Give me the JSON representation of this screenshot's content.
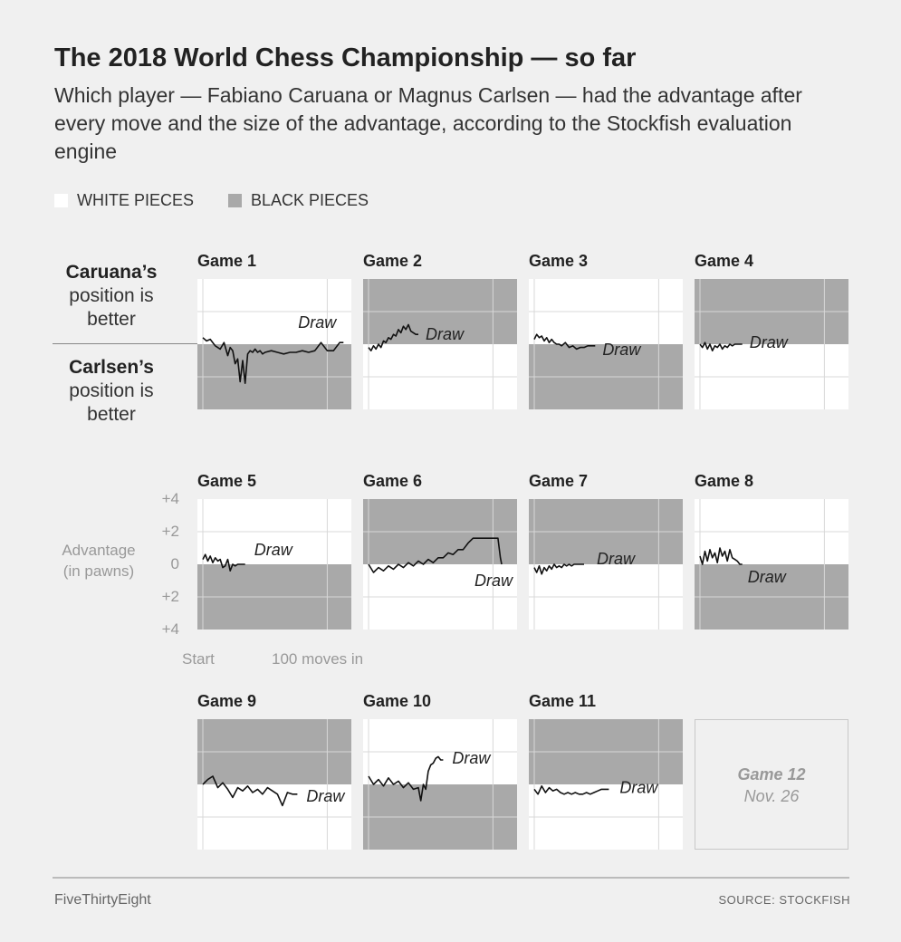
{
  "header": {
    "title": "The 2018 World Chess Championship — so far",
    "subtitle": "Which player — Fabiano Caruana or Magnus Carlsen — had the advantage after every move and the size of the advantage, according to the Stockfish evaluation engine"
  },
  "legend": {
    "white": "WHITE PIECES",
    "black": "BLACK PIECES"
  },
  "side_labels": {
    "caruana": {
      "name": "Caruana’s",
      "l2": "position is",
      "l3": "better"
    },
    "carlsen": {
      "name": "Carlsen’s",
      "l2": "position is",
      "l3": "better"
    }
  },
  "axis": {
    "ylabel_1": "Advantage",
    "ylabel_2": "(in pawns)",
    "yticks": [
      "+4",
      "+2",
      "0",
      "+2",
      "+4"
    ],
    "xticks": [
      "Start",
      "100 moves in"
    ]
  },
  "pending_game": {
    "title": "Game 12",
    "date": "Nov. 26"
  },
  "footer": {
    "brand": "FiveThirtyEight",
    "source": "SOURCE: STOCKFISH"
  },
  "colors": {
    "white_pieces": "#ffffff",
    "black_pieces": "#a9a9a9",
    "grid": "#d8d8d8",
    "line": "#111111"
  },
  "chart_data": {
    "type": "line",
    "x_unit": "moves",
    "y_unit": "pawns",
    "y_positive_means": "Caruana’s position is better",
    "ylim": [
      -4,
      4
    ],
    "xlim": [
      0,
      115
    ],
    "games": [
      {
        "title": "Game 1",
        "caruana_color": "white",
        "result": "Draw",
        "x": [
          0,
          3,
          6,
          10,
          14,
          17,
          20,
          22,
          24,
          26,
          28,
          30,
          32,
          34,
          36,
          38,
          40,
          42,
          44,
          46,
          48,
          50,
          55,
          60,
          65,
          70,
          75,
          80,
          85,
          90,
          95,
          100,
          105,
          110,
          113
        ],
        "y": [
          0.4,
          0.2,
          0.3,
          -0.1,
          -0.3,
          0.1,
          -0.7,
          -0.2,
          -0.4,
          -1.2,
          -0.9,
          -2.3,
          -1.0,
          -2.4,
          -0.6,
          -0.4,
          -0.5,
          -0.3,
          -0.5,
          -0.4,
          -0.6,
          -0.5,
          -0.4,
          -0.5,
          -0.6,
          -0.5,
          -0.5,
          -0.4,
          -0.5,
          -0.4,
          0.1,
          -0.4,
          -0.4,
          0.1,
          0.1
        ]
      },
      {
        "title": "Game 2",
        "caruana_color": "black",
        "result": "Draw",
        "x": [
          0,
          2,
          4,
          6,
          8,
          10,
          12,
          14,
          16,
          18,
          20,
          22,
          24,
          26,
          28,
          30,
          32,
          34,
          36,
          38,
          40
        ],
        "y": [
          -0.2,
          -0.4,
          -0.1,
          -0.3,
          0.0,
          -0.2,
          0.2,
          0.1,
          0.4,
          0.3,
          0.6,
          0.5,
          0.9,
          0.7,
          1.1,
          0.9,
          1.2,
          0.8,
          0.7,
          0.6,
          0.6
        ]
      },
      {
        "title": "Game 3",
        "caruana_color": "white",
        "result": "Draw",
        "x": [
          0,
          2,
          4,
          6,
          8,
          10,
          12,
          14,
          16,
          18,
          20,
          22,
          25,
          28,
          31,
          34,
          37,
          40,
          43,
          46,
          49
        ],
        "y": [
          0.3,
          0.6,
          0.4,
          0.5,
          0.2,
          0.4,
          0.1,
          0.3,
          0.1,
          0.0,
          0.0,
          -0.1,
          0.1,
          -0.2,
          -0.1,
          -0.3,
          -0.2,
          -0.2,
          -0.1,
          -0.1,
          -0.1
        ]
      },
      {
        "title": "Game 4",
        "caruana_color": "black",
        "result": "Draw",
        "x": [
          0,
          2,
          4,
          6,
          8,
          10,
          12,
          14,
          16,
          18,
          20,
          22,
          24,
          26,
          28,
          30,
          32,
          34
        ],
        "y": [
          0.0,
          -0.2,
          0.1,
          -0.3,
          0.0,
          -0.4,
          -0.1,
          -0.2,
          0.0,
          -0.3,
          -0.1,
          -0.2,
          0.0,
          -0.1,
          0.0,
          0.0,
          0.0,
          0.0
        ]
      },
      {
        "title": "Game 5",
        "caruana_color": "white",
        "result": "Draw",
        "x": [
          0,
          2,
          4,
          6,
          8,
          10,
          12,
          14,
          16,
          18,
          20,
          22,
          24,
          26,
          28,
          30,
          32,
          34
        ],
        "y": [
          0.3,
          0.6,
          0.2,
          0.5,
          0.1,
          0.4,
          0.2,
          0.3,
          -0.2,
          -0.1,
          0.3,
          -0.4,
          0.0,
          -0.1,
          0.0,
          0.0,
          0.0,
          0.0
        ]
      },
      {
        "title": "Game 6",
        "caruana_color": "black",
        "result": "Draw",
        "x": [
          0,
          4,
          8,
          12,
          16,
          20,
          24,
          28,
          32,
          36,
          40,
          44,
          48,
          52,
          56,
          60,
          64,
          68,
          72,
          76,
          80,
          84,
          88,
          92,
          96,
          100,
          104,
          106,
          107
        ],
        "y": [
          0.0,
          -0.5,
          -0.2,
          -0.4,
          -0.1,
          -0.3,
          0.0,
          -0.2,
          0.1,
          -0.1,
          0.2,
          0.0,
          0.3,
          0.1,
          0.4,
          0.4,
          0.7,
          0.6,
          0.9,
          0.9,
          1.3,
          1.6,
          1.6,
          1.6,
          1.6,
          1.6,
          1.6,
          0.4,
          0.0
        ]
      },
      {
        "title": "Game 7",
        "caruana_color": "black",
        "result": "Draw",
        "x": [
          0,
          2,
          4,
          6,
          8,
          10,
          12,
          14,
          16,
          18,
          20,
          22,
          24,
          26,
          28,
          30,
          32,
          34,
          36,
          38,
          40
        ],
        "y": [
          -0.2,
          -0.5,
          -0.1,
          -0.6,
          -0.2,
          -0.4,
          -0.1,
          -0.3,
          0.0,
          -0.2,
          -0.1,
          -0.2,
          0.0,
          -0.1,
          0.0,
          -0.1,
          0.0,
          0.0,
          0.0,
          0.0,
          0.0
        ]
      },
      {
        "title": "Game 8",
        "caruana_color": "white",
        "result": "Draw",
        "x": [
          0,
          2,
          4,
          6,
          8,
          10,
          12,
          14,
          16,
          18,
          20,
          22,
          24,
          26,
          28,
          30,
          32,
          34
        ],
        "y": [
          0.5,
          0.0,
          0.8,
          0.2,
          0.9,
          0.4,
          0.7,
          0.1,
          1.0,
          0.5,
          0.8,
          0.2,
          0.9,
          0.4,
          0.3,
          0.2,
          0.0,
          0.0
        ]
      },
      {
        "title": "Game 9",
        "caruana_color": "black",
        "result": "Draw",
        "x": [
          0,
          4,
          8,
          12,
          16,
          20,
          24,
          28,
          32,
          36,
          40,
          44,
          48,
          52,
          56,
          60,
          64,
          68,
          72,
          76
        ],
        "y": [
          0.0,
          0.3,
          0.5,
          -0.2,
          0.1,
          -0.3,
          -0.8,
          -0.2,
          -0.4,
          -0.1,
          -0.5,
          -0.3,
          -0.6,
          -0.2,
          -0.4,
          -0.6,
          -1.3,
          -0.5,
          -0.6,
          -0.6
        ]
      },
      {
        "title": "Game 10",
        "caruana_color": "white",
        "result": "Draw",
        "x": [
          0,
          4,
          8,
          12,
          16,
          20,
          24,
          28,
          32,
          36,
          40,
          42,
          44,
          46,
          48,
          50,
          52,
          54,
          56,
          58,
          60
        ],
        "y": [
          0.5,
          0.0,
          0.3,
          -0.1,
          0.4,
          0.0,
          0.2,
          -0.2,
          0.1,
          -0.3,
          -0.2,
          -1.0,
          0.0,
          -0.3,
          0.8,
          1.2,
          1.3,
          1.6,
          1.7,
          1.5,
          1.5
        ]
      },
      {
        "title": "Game 11",
        "caruana_color": "black",
        "result": "Draw",
        "x": [
          0,
          3,
          6,
          9,
          12,
          15,
          18,
          21,
          24,
          27,
          30,
          33,
          36,
          39,
          42,
          45,
          48,
          51,
          54,
          57,
          60
        ],
        "y": [
          -0.3,
          -0.6,
          -0.1,
          -0.5,
          -0.2,
          -0.4,
          -0.3,
          -0.5,
          -0.6,
          -0.5,
          -0.6,
          -0.5,
          -0.6,
          -0.6,
          -0.5,
          -0.6,
          -0.5,
          -0.4,
          -0.3,
          -0.3,
          -0.3
        ]
      }
    ]
  }
}
